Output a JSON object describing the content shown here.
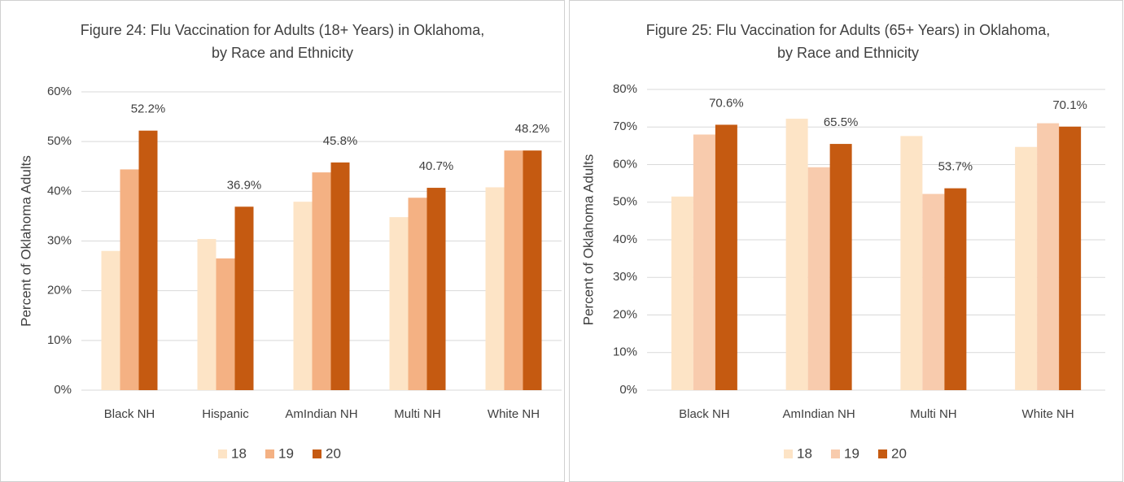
{
  "chart_data": [
    {
      "type": "bar",
      "title": [
        "Figure 24: Flu Vaccination for Adults (18+ Years) in Oklahoma,",
        "by Race and Ethnicity"
      ],
      "y_label": "Percent of Oklahoma Adults",
      "categories": [
        "Black NH",
        "Hispanic",
        "AmIndian NH",
        "Multi NH",
        "White NH"
      ],
      "series": [
        {
          "name": "18",
          "color": "#fde4c6",
          "values": [
            28,
            30.4,
            37.9,
            34.8,
            40.8
          ]
        },
        {
          "name": "19",
          "color": "#f4b183",
          "values": [
            44.4,
            26.5,
            43.8,
            38.7,
            48.2
          ]
        },
        {
          "name": "20",
          "color": "#c55a11",
          "values": [
            52.2,
            36.9,
            45.8,
            40.7,
            48.2
          ],
          "value_labels": [
            "52.2%",
            "36.9%",
            "45.8%",
            "40.7%",
            "48.2%"
          ]
        }
      ],
      "ylim": [
        0,
        60
      ],
      "yticks": [
        {
          "value": 0,
          "label": "0%"
        },
        {
          "value": 10,
          "label": "10%"
        },
        {
          "value": 20,
          "label": "20%"
        },
        {
          "value": 30,
          "label": "30%"
        },
        {
          "value": 40,
          "label": "40%"
        },
        {
          "value": 50,
          "label": "50%"
        },
        {
          "value": 60,
          "label": "60%"
        }
      ],
      "grid": true,
      "legend": "bottom"
    },
    {
      "type": "bar",
      "title": [
        "Figure 25: Flu Vaccination for Adults (65+ Years) in Oklahoma,",
        "by Race and Ethnicity"
      ],
      "y_label": "Percent of Oklahoma Adults",
      "categories": [
        "Black NH",
        "AmIndian NH",
        "Multi NH",
        "White NH"
      ],
      "series": [
        {
          "name": "18",
          "color": "#fde4c6",
          "values": [
            51.5,
            72.2,
            67.6,
            64.7
          ]
        },
        {
          "name": "19",
          "color": "#f8cbad",
          "values": [
            68,
            59.3,
            52.2,
            71
          ]
        },
        {
          "name": "20",
          "color": "#c55a11",
          "values": [
            70.6,
            65.5,
            53.7,
            70.1
          ],
          "value_labels": [
            "70.6%",
            "65.5%",
            "53.7%",
            "70.1%"
          ]
        }
      ],
      "ylim": [
        0,
        80
      ],
      "yticks": [
        {
          "value": 0,
          "label": "0%"
        },
        {
          "value": 10,
          "label": "10%"
        },
        {
          "value": 20,
          "label": "20%"
        },
        {
          "value": 30,
          "label": "30%"
        },
        {
          "value": 40,
          "label": "40%"
        },
        {
          "value": 50,
          "label": "50%"
        },
        {
          "value": 60,
          "label": "60%"
        },
        {
          "value": 70,
          "label": "70%"
        },
        {
          "value": 80,
          "label": "80%"
        }
      ],
      "grid": true,
      "legend": "bottom"
    }
  ]
}
